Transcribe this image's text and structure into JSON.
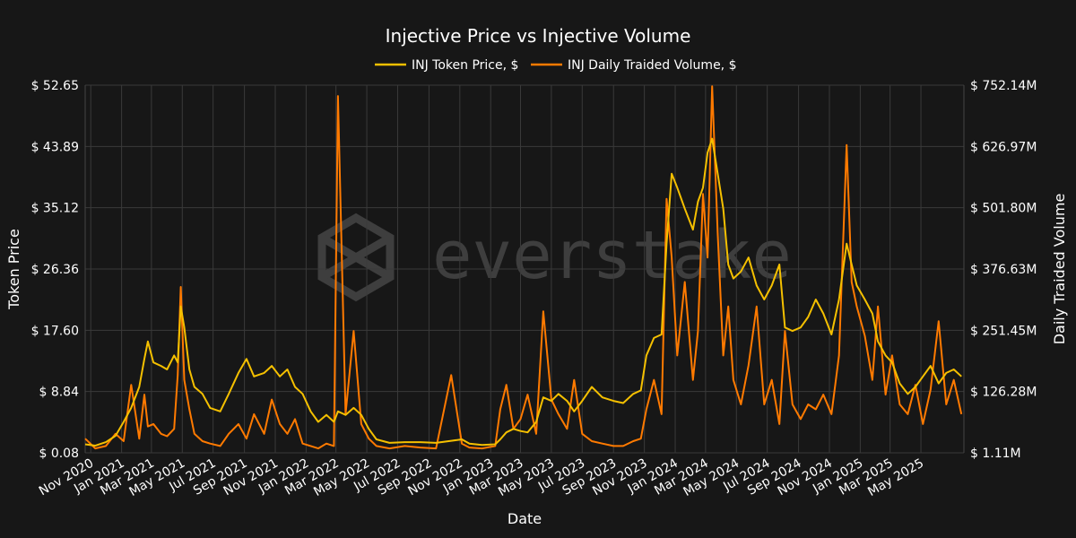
{
  "chart_data": {
    "type": "line",
    "title": "Injective Price vs Injective Volume",
    "xlabel": "Date",
    "ylabel_left": "Token Price",
    "ylabel_right": "Daily Traided Volume",
    "watermark": "everstake",
    "x_ticks": [
      "Nov 2020",
      "Jan 2021",
      "Mar 2021",
      "May 2021",
      "Jul 2021",
      "Sep 2021",
      "Nov 2021",
      "Jan 2022",
      "Mar 2022",
      "May 2022",
      "Jul 2022",
      "Sep 2022",
      "Nov 2022",
      "Jan 2023",
      "Mar 2023",
      "May 2023",
      "Jul 2023",
      "Sep 2023",
      "Nov 2023",
      "Jan 2024",
      "Mar 2024",
      "May 2024",
      "Jul 2024",
      "Sep 2024",
      "Nov 2024",
      "Jan 2025",
      "Mar 2025",
      "May 2025"
    ],
    "x_range": [
      "2020-10-21",
      "2025-07-25"
    ],
    "y_left_ticks": [
      "$ 0.08",
      "$ 8.84",
      "$ 17.60",
      "$ 26.36",
      "$ 35.12",
      "$ 43.89",
      "$ 52.65"
    ],
    "y_left_range": [
      0.08,
      52.65
    ],
    "y_right_ticks": [
      "$ 1.11M",
      "$ 126.28M",
      "$ 251.45M",
      "$ 376.63M",
      "$ 501.80M",
      "$ 626.97M",
      "$ 752.14M"
    ],
    "y_right_range": [
      1.11,
      752.14
    ],
    "y_right_unit": "M",
    "grid": true,
    "legend_position": "top-center",
    "series": [
      {
        "name": "INJ Token Price, $",
        "axis": "left",
        "color": "#f5c000",
        "points": [
          [
            "2020-10-21",
            1.3
          ],
          [
            "2020-11-10",
            1.1
          ],
          [
            "2020-12-01",
            1.6
          ],
          [
            "2020-12-20",
            2.5
          ],
          [
            "2021-01-05",
            4.5
          ],
          [
            "2021-01-20",
            6.5
          ],
          [
            "2021-02-05",
            9.5
          ],
          [
            "2021-02-15",
            13.5
          ],
          [
            "2021-02-22",
            16.0
          ],
          [
            "2021-03-05",
            13.0
          ],
          [
            "2021-03-20",
            12.5
          ],
          [
            "2021-04-01",
            12.0
          ],
          [
            "2021-04-15",
            14.0
          ],
          [
            "2021-04-22",
            13.0
          ],
          [
            "2021-04-28",
            21.0
          ],
          [
            "2021-05-05",
            18.0
          ],
          [
            "2021-05-15",
            12.0
          ],
          [
            "2021-05-25",
            9.5
          ],
          [
            "2021-06-10",
            8.5
          ],
          [
            "2021-06-25",
            6.5
          ],
          [
            "2021-07-15",
            6.0
          ],
          [
            "2021-08-01",
            8.5
          ],
          [
            "2021-08-20",
            11.5
          ],
          [
            "2021-09-05",
            13.5
          ],
          [
            "2021-09-20",
            11.0
          ],
          [
            "2021-10-10",
            11.5
          ],
          [
            "2021-10-25",
            12.5
          ],
          [
            "2021-11-10",
            11.0
          ],
          [
            "2021-11-25",
            12.0
          ],
          [
            "2021-12-10",
            9.5
          ],
          [
            "2021-12-25",
            8.5
          ],
          [
            "2022-01-10",
            6.0
          ],
          [
            "2022-01-25",
            4.5
          ],
          [
            "2022-02-10",
            5.5
          ],
          [
            "2022-02-25",
            4.5
          ],
          [
            "2022-03-05",
            6.0
          ],
          [
            "2022-03-20",
            5.5
          ],
          [
            "2022-04-05",
            6.5
          ],
          [
            "2022-04-20",
            5.5
          ],
          [
            "2022-05-05",
            3.5
          ],
          [
            "2022-05-20",
            2.0
          ],
          [
            "2022-06-15",
            1.5
          ],
          [
            "2022-07-15",
            1.6
          ],
          [
            "2022-08-15",
            1.6
          ],
          [
            "2022-09-15",
            1.5
          ],
          [
            "2022-10-15",
            1.8
          ],
          [
            "2022-11-05",
            2.0
          ],
          [
            "2022-11-20",
            1.4
          ],
          [
            "2022-12-15",
            1.2
          ],
          [
            "2023-01-10",
            1.3
          ],
          [
            "2023-01-20",
            2.0
          ],
          [
            "2023-02-01",
            3.0
          ],
          [
            "2023-02-15",
            3.5
          ],
          [
            "2023-03-01",
            3.2
          ],
          [
            "2023-03-15",
            3.0
          ],
          [
            "2023-04-01",
            4.5
          ],
          [
            "2023-04-15",
            8.0
          ],
          [
            "2023-05-01",
            7.5
          ],
          [
            "2023-05-15",
            8.5
          ],
          [
            "2023-06-01",
            7.5
          ],
          [
            "2023-06-15",
            6.0
          ],
          [
            "2023-07-01",
            7.5
          ],
          [
            "2023-07-20",
            9.5
          ],
          [
            "2023-08-10",
            8.0
          ],
          [
            "2023-09-01",
            7.5
          ],
          [
            "2023-09-20",
            7.2
          ],
          [
            "2023-10-10",
            8.5
          ],
          [
            "2023-10-25",
            9.0
          ],
          [
            "2023-11-05",
            14.0
          ],
          [
            "2023-11-20",
            16.5
          ],
          [
            "2023-12-05",
            17.0
          ],
          [
            "2023-12-15",
            30.0
          ],
          [
            "2023-12-25",
            40.0
          ],
          [
            "2024-01-05",
            38.0
          ],
          [
            "2024-01-20",
            35.0
          ],
          [
            "2024-02-05",
            32.0
          ],
          [
            "2024-02-15",
            36.0
          ],
          [
            "2024-02-25",
            38.0
          ],
          [
            "2024-03-05",
            43.0
          ],
          [
            "2024-03-14",
            45.0
          ],
          [
            "2024-03-25",
            40.0
          ],
          [
            "2024-04-05",
            35.0
          ],
          [
            "2024-04-15",
            27.0
          ],
          [
            "2024-04-25",
            25.0
          ],
          [
            "2024-05-10",
            26.0
          ],
          [
            "2024-05-25",
            28.0
          ],
          [
            "2024-06-10",
            24.0
          ],
          [
            "2024-06-25",
            22.0
          ],
          [
            "2024-07-10",
            24.0
          ],
          [
            "2024-07-25",
            27.0
          ],
          [
            "2024-08-05",
            18.0
          ],
          [
            "2024-08-20",
            17.5
          ],
          [
            "2024-09-05",
            18.0
          ],
          [
            "2024-09-20",
            19.5
          ],
          [
            "2024-10-05",
            22.0
          ],
          [
            "2024-10-20",
            20.0
          ],
          [
            "2024-11-05",
            17.0
          ],
          [
            "2024-11-20",
            22.0
          ],
          [
            "2024-12-05",
            30.0
          ],
          [
            "2024-12-15",
            27.0
          ],
          [
            "2024-12-25",
            24.0
          ],
          [
            "2025-01-10",
            22.0
          ],
          [
            "2025-01-25",
            20.0
          ],
          [
            "2025-02-05",
            16.0
          ],
          [
            "2025-02-20",
            14.0
          ],
          [
            "2025-03-05",
            13.0
          ],
          [
            "2025-03-20",
            10.0
          ],
          [
            "2025-04-05",
            8.5
          ],
          [
            "2025-04-20",
            9.5
          ],
          [
            "2025-05-05",
            11.0
          ],
          [
            "2025-05-20",
            12.5
          ],
          [
            "2025-06-05",
            10.0
          ],
          [
            "2025-06-20",
            11.5
          ],
          [
            "2025-07-05",
            12.0
          ],
          [
            "2025-07-20",
            11.0
          ]
        ]
      },
      {
        "name": "INJ Daily Traided Volume, $",
        "axis": "right",
        "color": "#ff7a00",
        "points": [
          [
            "2020-10-21",
            30
          ],
          [
            "2020-11-10",
            10
          ],
          [
            "2020-12-01",
            15
          ],
          [
            "2020-12-20",
            40
          ],
          [
            "2021-01-05",
            25
          ],
          [
            "2021-01-20",
            140
          ],
          [
            "2021-02-05",
            30
          ],
          [
            "2021-02-15",
            120
          ],
          [
            "2021-02-22",
            55
          ],
          [
            "2021-03-05",
            60
          ],
          [
            "2021-03-20",
            40
          ],
          [
            "2021-04-01",
            35
          ],
          [
            "2021-04-15",
            50
          ],
          [
            "2021-04-22",
            160
          ],
          [
            "2021-04-28",
            340
          ],
          [
            "2021-05-05",
            150
          ],
          [
            "2021-05-15",
            90
          ],
          [
            "2021-05-25",
            40
          ],
          [
            "2021-06-10",
            25
          ],
          [
            "2021-06-25",
            20
          ],
          [
            "2021-07-15",
            15
          ],
          [
            "2021-08-01",
            40
          ],
          [
            "2021-08-20",
            60
          ],
          [
            "2021-09-05",
            30
          ],
          [
            "2021-09-20",
            80
          ],
          [
            "2021-10-10",
            40
          ],
          [
            "2021-10-25",
            110
          ],
          [
            "2021-11-10",
            60
          ],
          [
            "2021-11-25",
            40
          ],
          [
            "2021-12-10",
            70
          ],
          [
            "2021-12-25",
            20
          ],
          [
            "2022-01-10",
            15
          ],
          [
            "2022-01-25",
            10
          ],
          [
            "2022-02-10",
            20
          ],
          [
            "2022-02-25",
            15
          ],
          [
            "2022-03-05",
            730
          ],
          [
            "2022-03-20",
            80
          ],
          [
            "2022-04-05",
            250
          ],
          [
            "2022-04-20",
            60
          ],
          [
            "2022-05-05",
            30
          ],
          [
            "2022-05-20",
            15
          ],
          [
            "2022-06-15",
            10
          ],
          [
            "2022-07-15",
            15
          ],
          [
            "2022-08-15",
            12
          ],
          [
            "2022-09-15",
            10
          ],
          [
            "2022-10-15",
            160
          ],
          [
            "2022-11-05",
            20
          ],
          [
            "2022-11-20",
            12
          ],
          [
            "2022-12-15",
            10
          ],
          [
            "2023-01-10",
            15
          ],
          [
            "2023-01-20",
            90
          ],
          [
            "2023-02-01",
            140
          ],
          [
            "2023-02-15",
            50
          ],
          [
            "2023-03-01",
            70
          ],
          [
            "2023-03-15",
            120
          ],
          [
            "2023-04-01",
            40
          ],
          [
            "2023-04-15",
            290
          ],
          [
            "2023-05-01",
            110
          ],
          [
            "2023-05-15",
            80
          ],
          [
            "2023-06-01",
            50
          ],
          [
            "2023-06-15",
            150
          ],
          [
            "2023-07-01",
            40
          ],
          [
            "2023-07-20",
            25
          ],
          [
            "2023-08-10",
            20
          ],
          [
            "2023-09-01",
            15
          ],
          [
            "2023-09-20",
            15
          ],
          [
            "2023-10-10",
            25
          ],
          [
            "2023-10-25",
            30
          ],
          [
            "2023-11-05",
            90
          ],
          [
            "2023-11-20",
            150
          ],
          [
            "2023-12-05",
            80
          ],
          [
            "2023-12-15",
            520
          ],
          [
            "2023-12-25",
            400
          ],
          [
            "2024-01-05",
            200
          ],
          [
            "2024-01-20",
            350
          ],
          [
            "2024-02-05",
            150
          ],
          [
            "2024-02-15",
            250
          ],
          [
            "2024-02-25",
            530
          ],
          [
            "2024-03-05",
            400
          ],
          [
            "2024-03-14",
            750
          ],
          [
            "2024-03-25",
            450
          ],
          [
            "2024-04-05",
            200
          ],
          [
            "2024-04-15",
            300
          ],
          [
            "2024-04-25",
            150
          ],
          [
            "2024-05-10",
            100
          ],
          [
            "2024-05-25",
            180
          ],
          [
            "2024-06-10",
            300
          ],
          [
            "2024-06-25",
            100
          ],
          [
            "2024-07-10",
            150
          ],
          [
            "2024-07-25",
            60
          ],
          [
            "2024-08-05",
            250
          ],
          [
            "2024-08-20",
            100
          ],
          [
            "2024-09-05",
            70
          ],
          [
            "2024-09-20",
            100
          ],
          [
            "2024-10-05",
            90
          ],
          [
            "2024-10-20",
            120
          ],
          [
            "2024-11-05",
            80
          ],
          [
            "2024-11-20",
            200
          ],
          [
            "2024-12-05",
            630
          ],
          [
            "2024-12-15",
            350
          ],
          [
            "2024-12-25",
            300
          ],
          [
            "2025-01-10",
            240
          ],
          [
            "2025-01-25",
            150
          ],
          [
            "2025-02-05",
            300
          ],
          [
            "2025-02-20",
            120
          ],
          [
            "2025-03-05",
            200
          ],
          [
            "2025-03-20",
            100
          ],
          [
            "2025-04-05",
            80
          ],
          [
            "2025-04-20",
            140
          ],
          [
            "2025-05-05",
            60
          ],
          [
            "2025-05-20",
            130
          ],
          [
            "2025-06-05",
            270
          ],
          [
            "2025-06-20",
            100
          ],
          [
            "2025-07-05",
            150
          ],
          [
            "2025-07-20",
            80
          ]
        ]
      }
    ]
  }
}
